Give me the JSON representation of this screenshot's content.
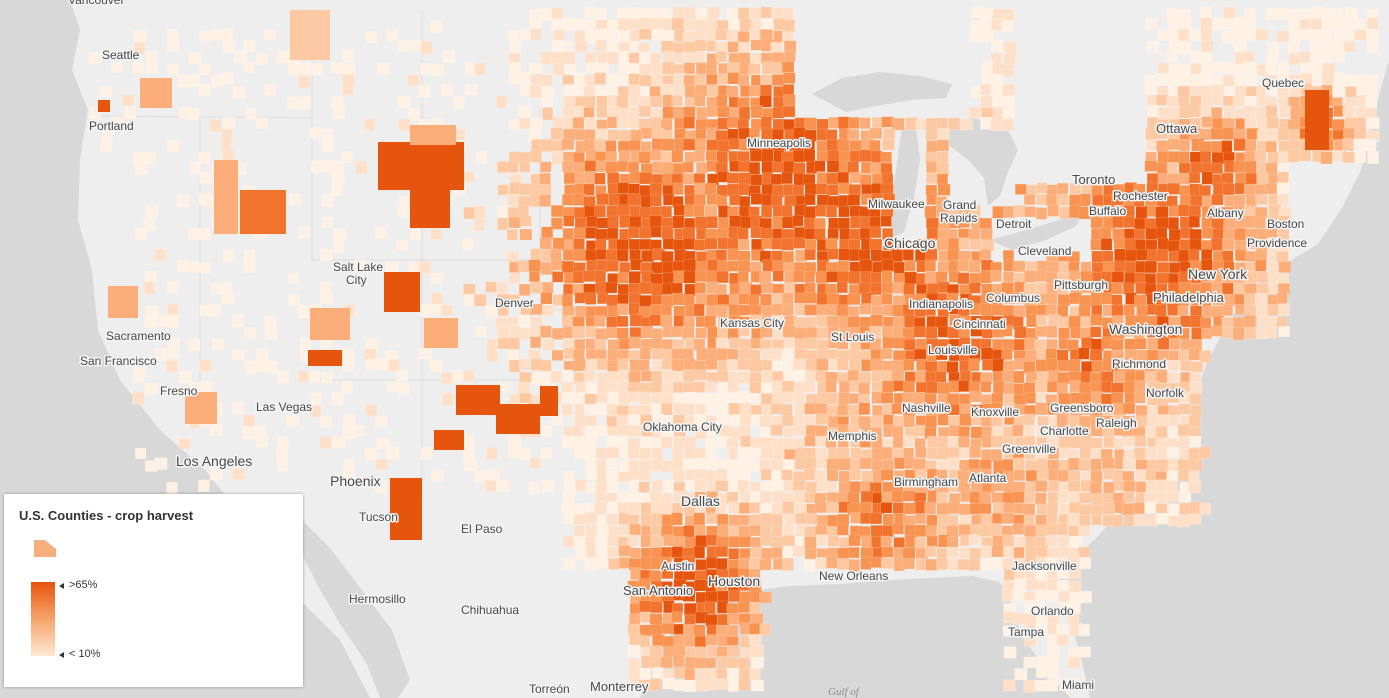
{
  "legend": {
    "title": "U.S. Counties - crop harvest",
    "high_label": ">65%",
    "low_label": "< 10%",
    "ramp_colors": [
      "#e6550d",
      "#f7a36c",
      "#fee8d6"
    ]
  },
  "map": {
    "water_label": "Gulf of",
    "cities": [
      {
        "name": "Vancouver",
        "size": 12
      },
      {
        "name": "Seattle",
        "size": 12
      },
      {
        "name": "Portland",
        "size": 12
      },
      {
        "name": "Sacramento",
        "size": 12
      },
      {
        "name": "San Francisco",
        "size": 12
      },
      {
        "name": "Fresno",
        "size": 12
      },
      {
        "name": "Los Angeles",
        "size": 14
      },
      {
        "name": "Las Vegas",
        "size": 12
      },
      {
        "name": "Phoenix",
        "size": 14
      },
      {
        "name": "Tucson",
        "size": 12
      },
      {
        "name": "Salt Lake City",
        "size": 12
      },
      {
        "name": "Denver",
        "size": 12
      },
      {
        "name": "El Paso",
        "size": 12
      },
      {
        "name": "Hermosillo",
        "size": 12
      },
      {
        "name": "Chihuahua",
        "size": 12
      },
      {
        "name": "Torreón",
        "size": 12
      },
      {
        "name": "Monterrey",
        "size": 13
      },
      {
        "name": "Dallas",
        "size": 14
      },
      {
        "name": "Austin",
        "size": 12
      },
      {
        "name": "San Antonio",
        "size": 13
      },
      {
        "name": "Houston",
        "size": 14
      },
      {
        "name": "Oklahoma City",
        "size": 12
      },
      {
        "name": "Kansas City",
        "size": 12
      },
      {
        "name": "Minneapolis",
        "size": 12
      },
      {
        "name": "Milwaukee",
        "size": 12
      },
      {
        "name": "Chicago",
        "size": 14
      },
      {
        "name": "St Louis",
        "size": 12
      },
      {
        "name": "Memphis",
        "size": 12
      },
      {
        "name": "New Orleans",
        "size": 12
      },
      {
        "name": "Nashville",
        "size": 12
      },
      {
        "name": "Birmingham",
        "size": 12
      },
      {
        "name": "Atlanta",
        "size": 12
      },
      {
        "name": "Indianapolis",
        "size": 12
      },
      {
        "name": "Louisville",
        "size": 12
      },
      {
        "name": "Cincinnati",
        "size": 12
      },
      {
        "name": "Columbus",
        "size": 12
      },
      {
        "name": "Grand Rapids",
        "size": 12
      },
      {
        "name": "Detroit",
        "size": 12
      },
      {
        "name": "Cleveland",
        "size": 12
      },
      {
        "name": "Pittsburgh",
        "size": 12
      },
      {
        "name": "Toronto",
        "size": 13
      },
      {
        "name": "Ottawa",
        "size": 13
      },
      {
        "name": "Quebec",
        "size": 12
      },
      {
        "name": "Rochester",
        "size": 12
      },
      {
        "name": "Buffalo",
        "size": 12
      },
      {
        "name": "Albany",
        "size": 12
      },
      {
        "name": "Boston",
        "size": 12
      },
      {
        "name": "Providence",
        "size": 12
      },
      {
        "name": "New York",
        "size": 14
      },
      {
        "name": "Philadelphia",
        "size": 13
      },
      {
        "name": "Washington",
        "size": 14
      },
      {
        "name": "Richmond",
        "size": 12
      },
      {
        "name": "Norfolk",
        "size": 12
      },
      {
        "name": "Greensboro",
        "size": 12
      },
      {
        "name": "Raleigh",
        "size": 12
      },
      {
        "name": "Charlotte",
        "size": 12
      },
      {
        "name": "Greenville",
        "size": 12
      },
      {
        "name": "Knoxville",
        "size": 12
      },
      {
        "name": "Jacksonville",
        "size": 12
      },
      {
        "name": "Orlando",
        "size": 12
      },
      {
        "name": "Tampa",
        "size": 12
      },
      {
        "name": "Miami",
        "size": 12
      }
    ]
  }
}
